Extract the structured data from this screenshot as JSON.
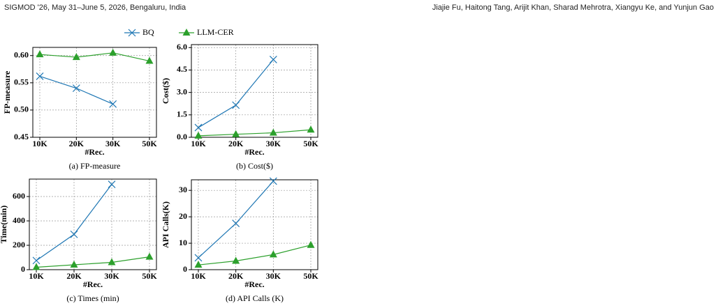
{
  "header": {
    "left": "SIGMOD '26, May 31–June 5, 2026, Bengaluru, India",
    "right": "Jiajie Fu, Haitong Tang, Arijit Khan, Sharad Mehrotra, Xiangyu Ke, and Yunjun Gao"
  },
  "legend": {
    "items": [
      {
        "name": "BQ",
        "color": "#1f77b4",
        "marker": "x"
      },
      {
        "name": "LLM-CER",
        "color": "#2ca02c",
        "marker": "triangle"
      }
    ]
  },
  "chart_data": [
    {
      "type": "line",
      "caption": "(a) FP-measure",
      "ylabel": "FP-measure",
      "xlabel": "#Rec.",
      "grid": true,
      "categories": [
        "10K",
        "20K",
        "30K",
        "50K"
      ],
      "series": [
        {
          "color": "#1f77b4",
          "values": [
            0.562,
            0.54,
            0.511,
            null
          ]
        },
        {
          "color": "#2ca02c",
          "values": [
            0.602,
            0.597,
            0.605,
            0.59
          ]
        }
      ],
      "ylim": [
        0.45,
        0.615
      ],
      "yticks": [
        0.45,
        {
          "value": 0.5,
          "label": "0.50"
        },
        0.55,
        {
          "value": 0.6,
          "label": "0.60"
        }
      ]
    },
    {
      "type": "line",
      "caption": "(b) Cost($)",
      "ylabel": "Cost($)",
      "xlabel": "#Rec.",
      "grid": true,
      "categories": [
        "10K",
        "20K",
        "30K",
        "50K"
      ],
      "series": [
        {
          "color": "#1f77b4",
          "values": [
            0.65,
            2.15,
            5.2,
            null
          ]
        },
        {
          "color": "#2ca02c",
          "values": [
            0.1,
            0.2,
            0.3,
            0.5
          ]
        }
      ],
      "ylim": [
        0,
        6.2
      ],
      "yticks": [
        {
          "value": 0,
          "label": "0.0"
        },
        1.5,
        {
          "value": 3,
          "label": "3.0"
        },
        4.5,
        {
          "value": 6,
          "label": "6.0"
        }
      ]
    },
    {
      "type": "line",
      "caption": "(c) Times (min)",
      "ylabel": "Time(min)",
      "xlabel": "#Rec.",
      "grid": true,
      "categories": [
        "10K",
        "20K",
        "30K",
        "50K"
      ],
      "series": [
        {
          "color": "#1f77b4",
          "values": [
            75,
            290,
            700,
            null
          ]
        },
        {
          "color": "#2ca02c",
          "values": [
            20,
            40,
            60,
            105
          ]
        }
      ],
      "ylim": [
        0,
        743
      ],
      "yticks": [
        0,
        200,
        400,
        600
      ]
    },
    {
      "type": "line",
      "caption": "(d) API Calls (K)",
      "ylabel": "API Calls(K)",
      "xlabel": "#Rec.",
      "grid": true,
      "categories": [
        "10K",
        "20K",
        "30K",
        "50K"
      ],
      "series": [
        {
          "color": "#1f77b4",
          "values": [
            4.5,
            17.5,
            33.5,
            null
          ]
        },
        {
          "color": "#2ca02c",
          "values": [
            1.8,
            3.3,
            5.7,
            9.3
          ]
        }
      ],
      "ylim": [
        0,
        34
      ],
      "yticks": [
        0,
        10,
        20,
        30
      ]
    }
  ]
}
